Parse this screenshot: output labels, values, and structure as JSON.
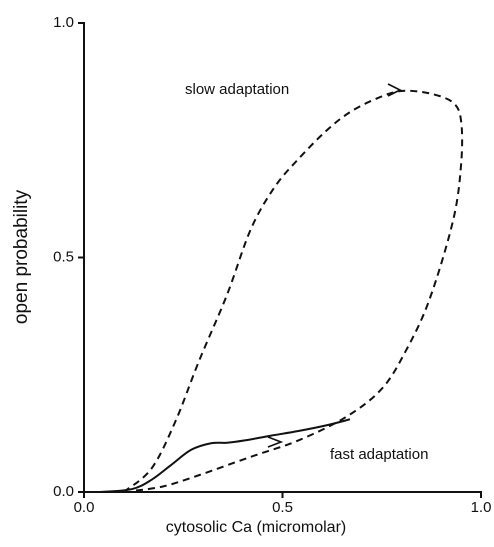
{
  "chart_data": {
    "type": "line",
    "x_label": "cytosolic Ca (micromolar)",
    "y_label": "open probability",
    "xlim": [
      0,
      1
    ],
    "ylim": [
      0,
      1
    ],
    "xticks": [
      {
        "value": 0,
        "label": "0.0"
      },
      {
        "value": 0.5,
        "label": "0.5"
      },
      {
        "value": 1,
        "label": "1.0"
      }
    ],
    "yticks": [
      {
        "value": 0,
        "label": "0.0"
      },
      {
        "value": 0.5,
        "label": "0.5"
      },
      {
        "value": 1,
        "label": "1.0"
      }
    ],
    "series": [
      {
        "name": "slow adaptation",
        "color": "#111111",
        "linestyle": "dashed",
        "x": [
          0.1,
          0.17,
          0.23,
          0.29,
          0.36,
          0.42,
          0.48,
          0.54,
          0.61,
          0.67,
          0.74,
          0.8,
          0.87,
          0.93,
          0.95,
          0.95,
          0.93,
          0.87,
          0.81,
          0.75,
          0.66,
          0.54,
          0.42,
          0.29,
          0.2,
          0.12
        ],
        "values": [
          0,
          0.05,
          0.15,
          0.28,
          0.42,
          0.56,
          0.65,
          0.71,
          0.77,
          0.81,
          0.84,
          0.855,
          0.85,
          0.83,
          0.79,
          0.7,
          0.58,
          0.41,
          0.3,
          0.22,
          0.16,
          0.11,
          0.075,
          0.036,
          0.012,
          0.002
        ]
      },
      {
        "name": "fast adaptation",
        "color": "#111111",
        "linestyle": "solid",
        "x": [
          0.04,
          0.12,
          0.17,
          0.22,
          0.27,
          0.32,
          0.36,
          0.405,
          0.47,
          0.54,
          0.61,
          0.67
        ],
        "values": [
          0,
          0.006,
          0.026,
          0.058,
          0.09,
          0.104,
          0.105,
          0.11,
          0.12,
          0.13,
          0.142,
          0.155
        ]
      }
    ]
  }
}
